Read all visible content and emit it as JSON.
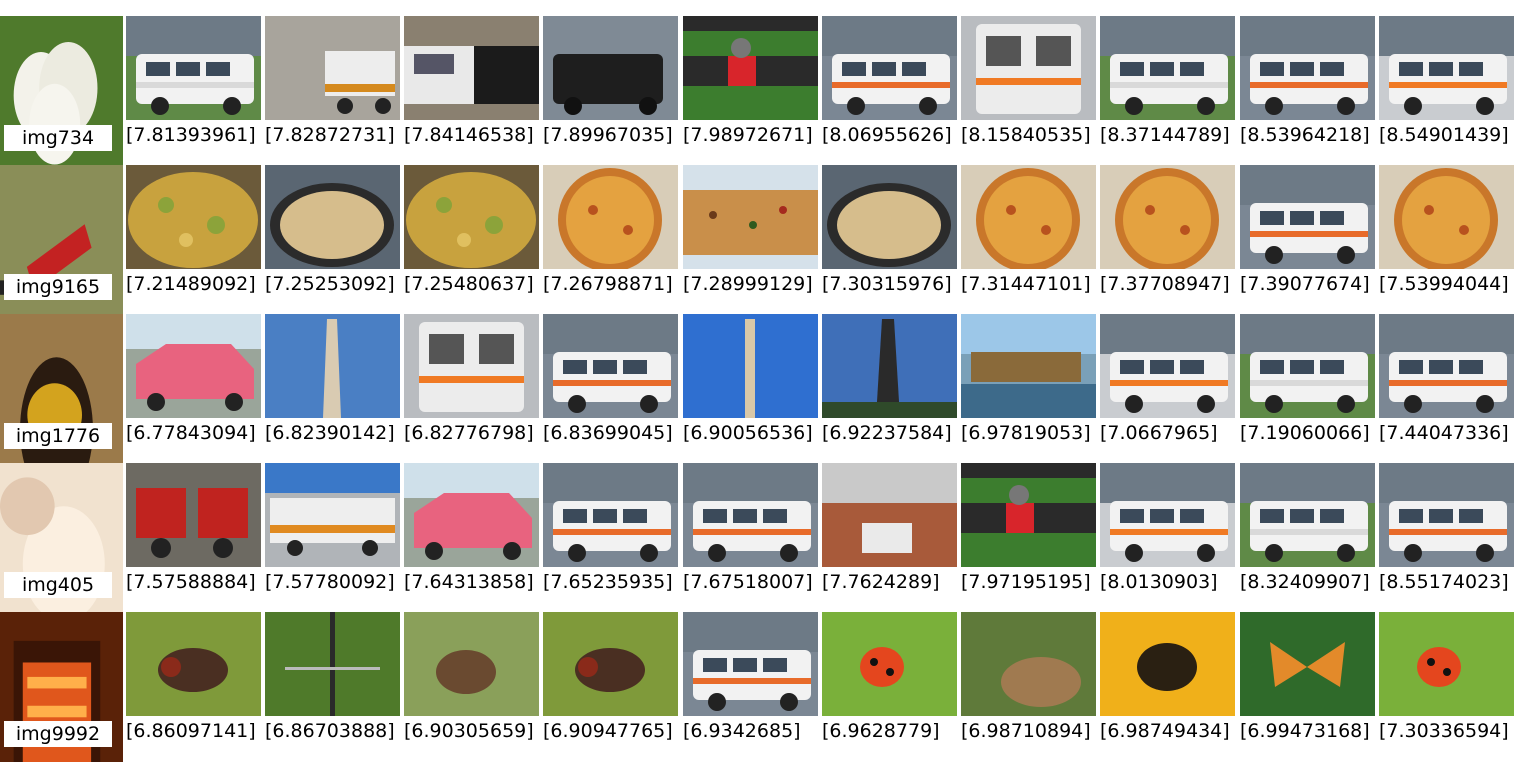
{
  "rows": [
    {
      "query": {
        "label": "img734",
        "icon": "cauliflower-photo"
      },
      "results": [
        {
          "score": "[7.81393961]",
          "icon": "white-van-photo"
        },
        {
          "score": "[7.82872731]",
          "icon": "truck-photo"
        },
        {
          "score": "[7.84146538]",
          "icon": "station-wagon-photo"
        },
        {
          "score": "[7.89967035]",
          "icon": "black-suv-photo"
        },
        {
          "score": "[7.98972671]",
          "icon": "go-kart-photo"
        },
        {
          "score": "[8.06955626]",
          "icon": "police-van-photo"
        },
        {
          "score": "[8.15840535]",
          "icon": "ambulance-rear-photo"
        },
        {
          "score": "[8.37144789]",
          "icon": "white-van-photo"
        },
        {
          "score": "[8.53964218]",
          "icon": "police-van-photo"
        },
        {
          "score": "[8.54901439]",
          "icon": "ambulance-photo"
        }
      ]
    },
    {
      "query": {
        "label": "img9165",
        "icon": "soccer-player-photo"
      },
      "results": [
        {
          "score": "[7.21489092]",
          "icon": "casserole-photo"
        },
        {
          "score": "[7.25253092]",
          "icon": "pan-dish-photo"
        },
        {
          "score": "[7.25480637]",
          "icon": "casserole-photo"
        },
        {
          "score": "[7.26798871]",
          "icon": "pizza-photo"
        },
        {
          "score": "[7.28999129]",
          "icon": "pizza-rect-photo"
        },
        {
          "score": "[7.30315976]",
          "icon": "pan-dish-photo"
        },
        {
          "score": "[7.31447101]",
          "icon": "pizza-photo"
        },
        {
          "score": "[7.37708947]",
          "icon": "pizza-photo"
        },
        {
          "score": "[7.39077674]",
          "icon": "police-van-photo"
        },
        {
          "score": "[7.53994044]",
          "icon": "pizza-photo"
        }
      ]
    },
    {
      "query": {
        "label": "img1776",
        "icon": "bumblebee-photo"
      },
      "results": [
        {
          "score": "[6.77843094]",
          "icon": "pink-car-photo"
        },
        {
          "score": "[6.82390142]",
          "icon": "obelisk-photo"
        },
        {
          "score": "[6.82776798]",
          "icon": "ambulance-rear-photo"
        },
        {
          "score": "[6.83699045]",
          "icon": "police-van-photo"
        },
        {
          "score": "[6.90056536]",
          "icon": "tower-photo"
        },
        {
          "score": "[6.92237584]",
          "icon": "obelisk-dark-photo"
        },
        {
          "score": "[6.97819053]",
          "icon": "houseboat-photo"
        },
        {
          "score": "[7.0667965]",
          "icon": "ambulance-photo"
        },
        {
          "score": "[7.19060066]",
          "icon": "white-van-photo"
        },
        {
          "score": "[7.44047336]",
          "icon": "police-van-photo"
        }
      ]
    },
    {
      "query": {
        "label": "img405",
        "icon": "cream-texture-photo"
      },
      "results": [
        {
          "score": "[7.57588884]",
          "icon": "rickshaw-photo"
        },
        {
          "score": "[7.57780092]",
          "icon": "bus-photo"
        },
        {
          "score": "[7.64313858]",
          "icon": "pink-car-photo"
        },
        {
          "score": "[7.65235935]",
          "icon": "police-van-photo"
        },
        {
          "score": "[7.67518007]",
          "icon": "police-van-photo"
        },
        {
          "score": "[7.7624289]",
          "icon": "house-truck-photo"
        },
        {
          "score": "[7.97195195]",
          "icon": "go-kart-photo"
        },
        {
          "score": "[8.0130903]",
          "icon": "ambulance-photo"
        },
        {
          "score": "[8.32409907]",
          "icon": "white-van-photo"
        },
        {
          "score": "[8.55174023]",
          "icon": "police-van-photo"
        }
      ]
    },
    {
      "query": {
        "label": "img9992",
        "icon": "fire-grill-photo"
      },
      "results": [
        {
          "score": "[6.86097141]",
          "icon": "fly-photo"
        },
        {
          "score": "[6.86703888]",
          "icon": "dragonfly-photo"
        },
        {
          "score": "[6.90305659]",
          "icon": "dog-grass-photo"
        },
        {
          "score": "[6.90947765]",
          "icon": "fly-photo"
        },
        {
          "score": "[6.9342685]",
          "icon": "police-van-photo"
        },
        {
          "score": "[6.9628779]",
          "icon": "ladybug-photo"
        },
        {
          "score": "[6.98710894]",
          "icon": "lion-photo"
        },
        {
          "score": "[6.98749434]",
          "icon": "bee-yellow-photo"
        },
        {
          "score": "[6.99473168]",
          "icon": "butterfly-photo"
        },
        {
          "score": "[7.30336594]",
          "icon": "ladybug-photo"
        }
      ]
    }
  ]
}
